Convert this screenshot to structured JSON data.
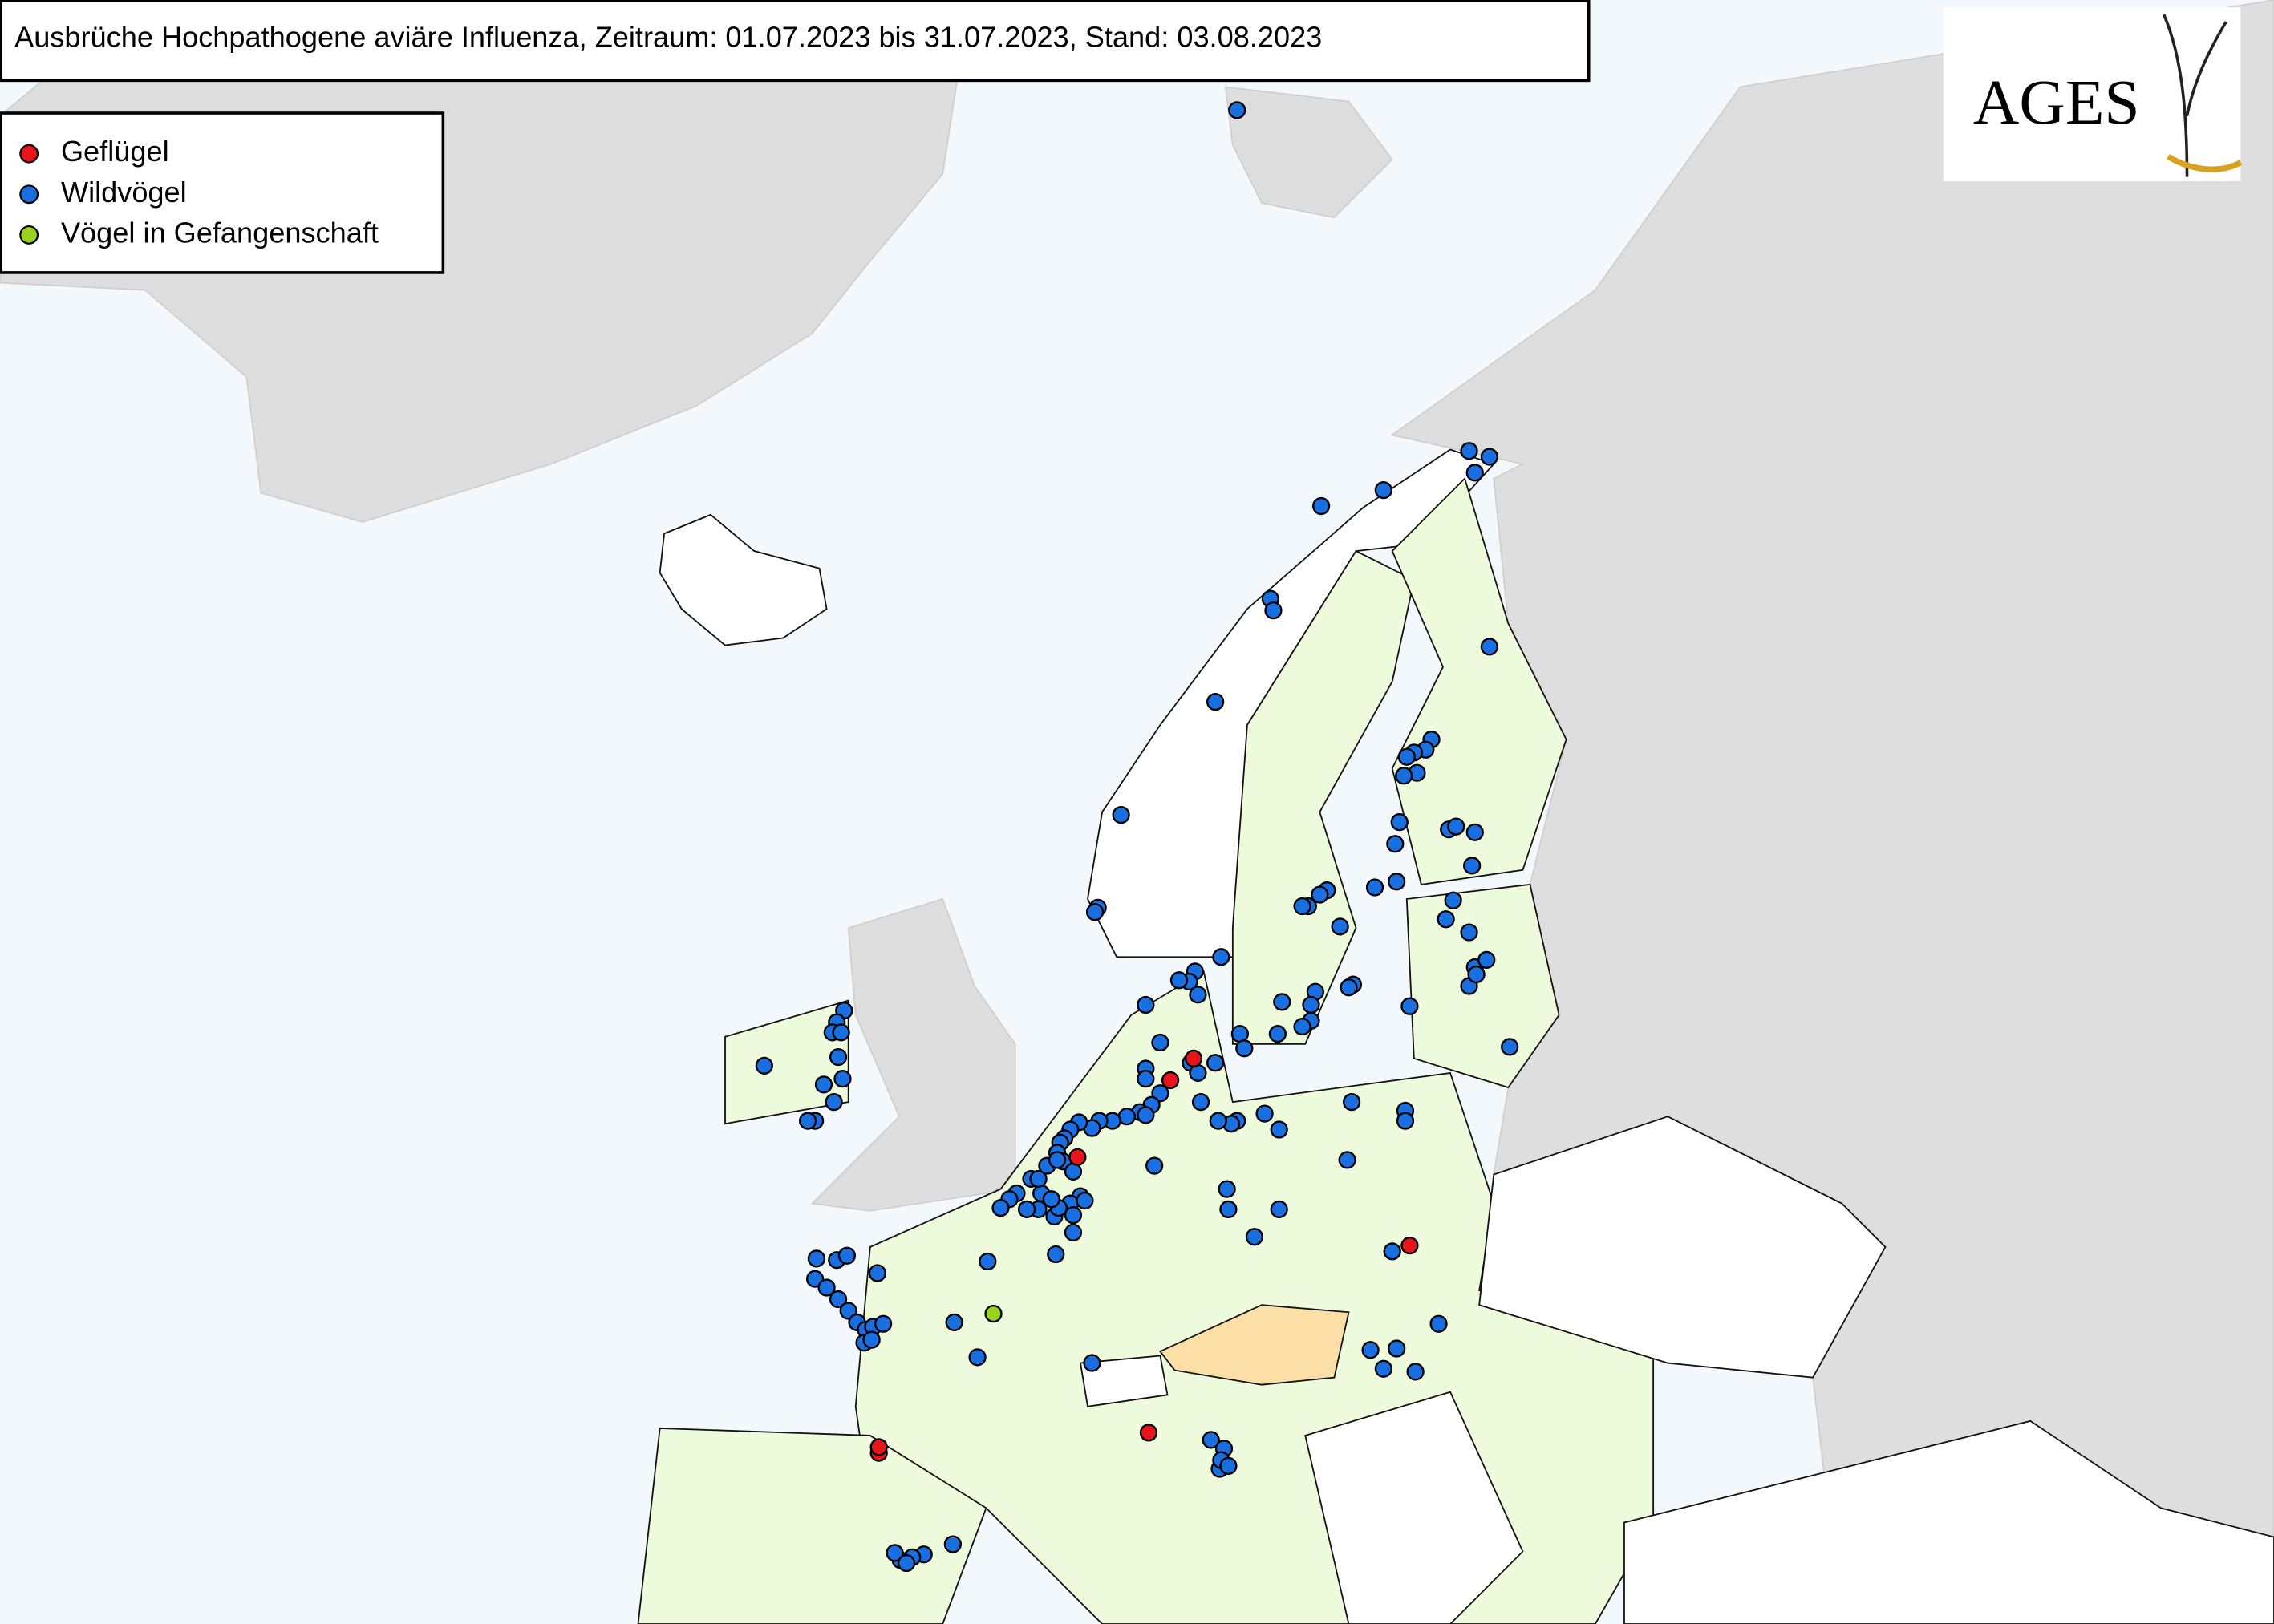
{
  "header": {
    "title": "Ausbrüche Hochpathogene aviäre Influenza, Zeitraum: 01.07.2023 bis 31.07.2023, Stand: 03.08.2023"
  },
  "legend": {
    "items": [
      {
        "label": "Geflügel",
        "color": "#e8141c"
      },
      {
        "label": "Wildvögel",
        "color": "#1a6fe0"
      },
      {
        "label": "Vögel in Gefangenschaft",
        "color": "#9ad21e"
      }
    ]
  },
  "logo": {
    "text": "AGES"
  }
}
